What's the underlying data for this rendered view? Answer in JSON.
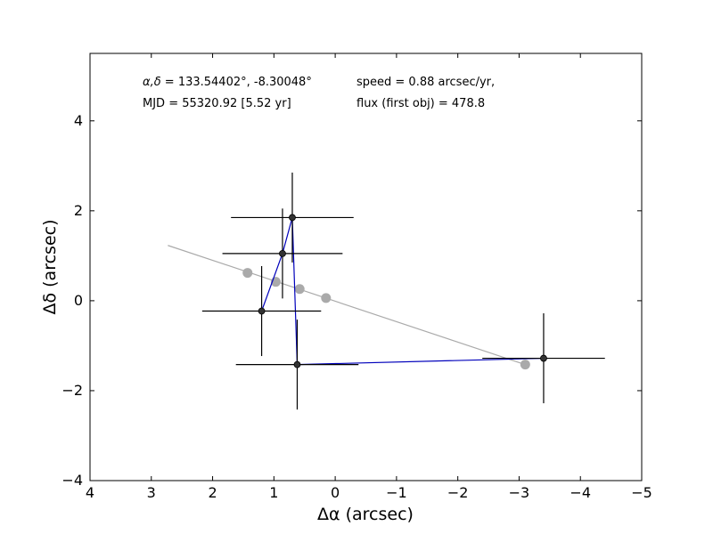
{
  "chart_data": {
    "type": "scatter",
    "title": "",
    "xlabel": "Δα (arcsec)",
    "ylabel": "Δδ (arcsec)",
    "xlim": [
      4,
      -5
    ],
    "ylim": [
      -4,
      5.5
    ],
    "x_reversed": true,
    "grid": false,
    "legend": "none",
    "xticks": [
      4,
      3,
      2,
      1,
      0,
      -1,
      -2,
      -3,
      -4,
      -5
    ],
    "xtick_labels": [
      "4",
      "3",
      "2",
      "1",
      "0",
      "−1",
      "−2",
      "−3",
      "−4",
      "−5"
    ],
    "yticks": [
      -4,
      -2,
      0,
      2,
      4
    ],
    "ytick_labels": [
      "−4",
      "−2",
      "0",
      "2",
      "4"
    ],
    "annotations": {
      "coords_prefix": "α,δ = ",
      "coords_value": "133.54402°, -8.30048°",
      "mjd": "MJD = 55320.92 [5.52 yr]",
      "speed": "speed = 0.88 arcsec/yr,",
      "flux": "flux (first obj) = 478.8"
    },
    "observed": {
      "color": "#0000bb",
      "marker_color": "#333333",
      "points": [
        {
          "x": 1.2,
          "y": -0.23,
          "xerr": 0.97,
          "yerr": 1.0
        },
        {
          "x": 0.86,
          "y": 1.05,
          "xerr": 0.98,
          "yerr": 1.0
        },
        {
          "x": 0.7,
          "y": 1.85,
          "xerr": 1.0,
          "yerr": 1.0
        },
        {
          "x": 0.62,
          "y": -1.42,
          "xerr": 1.0,
          "yerr": 1.0
        },
        {
          "x": -3.4,
          "y": -1.28,
          "xerr": 1.0,
          "yerr": 1.0
        }
      ]
    },
    "model": {
      "color": "#aaaaaa",
      "line": {
        "x": [
          2.73,
          -3.1
        ],
        "y": [
          1.23,
          -1.42
        ]
      },
      "points": [
        {
          "x": 1.43,
          "y": 0.62
        },
        {
          "x": 0.97,
          "y": 0.42
        },
        {
          "x": 0.58,
          "y": 0.26
        },
        {
          "x": 0.15,
          "y": 0.06
        },
        {
          "x": -3.1,
          "y": -1.42
        }
      ]
    }
  }
}
